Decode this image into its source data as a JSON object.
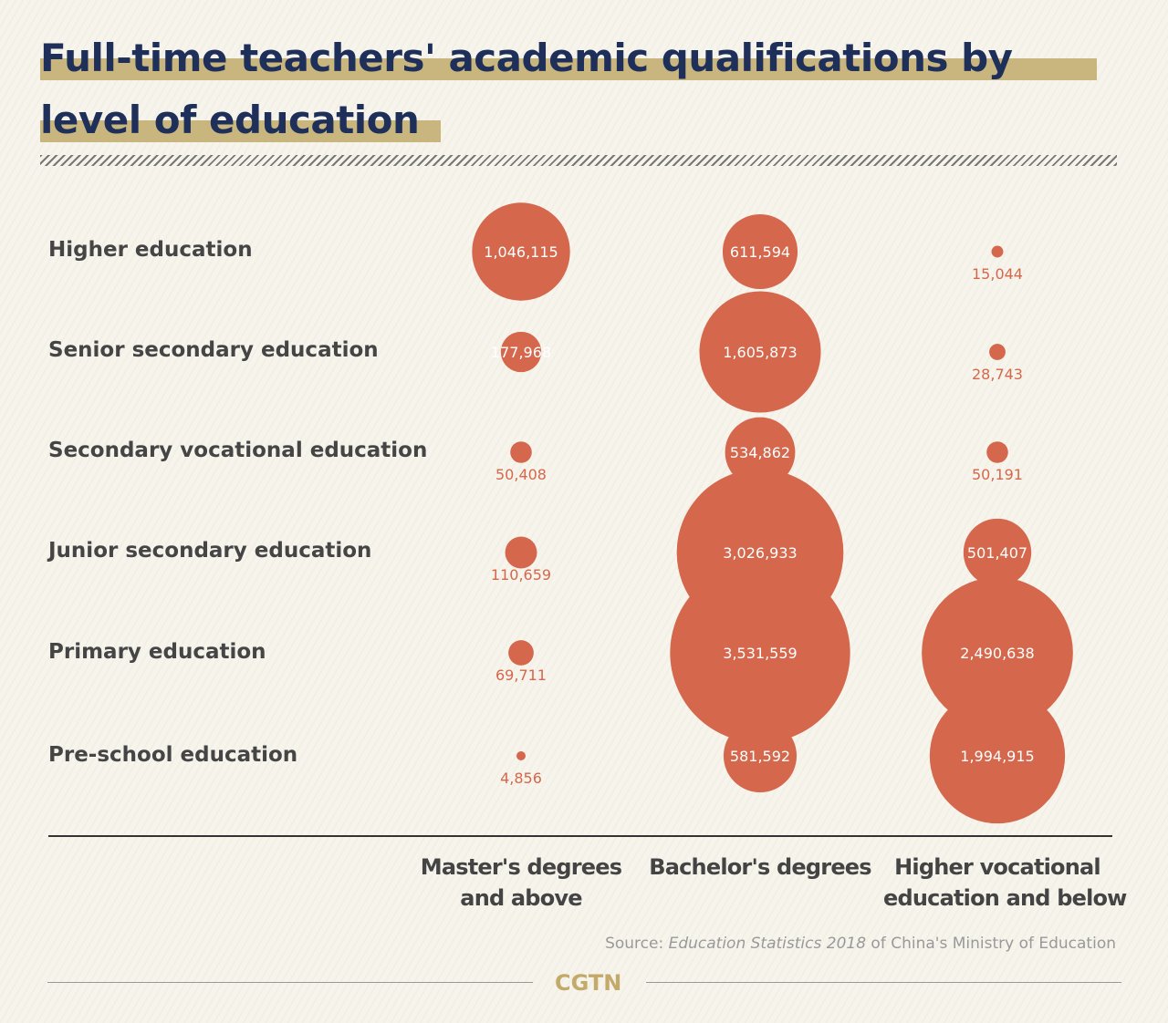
{
  "title_line1": "Full-time teachers' academic qualifications by",
  "title_line2": "level of education",
  "colors": {
    "bubble": "#d4674c",
    "title": "#1e2f5a",
    "highlight": "#c9b57e",
    "bg": "#f7f4ec"
  },
  "chart_data": {
    "type": "bubble",
    "title": "Full-time teachers' academic qualifications by level of education",
    "rows": [
      "Higher education",
      "Senior secondary education",
      "Secondary vocational education",
      "Junior secondary education",
      "Primary education",
      "Pre-school education"
    ],
    "columns": [
      "Master's degrees and above",
      "Bachelor's degrees",
      "Higher vocational education and below"
    ],
    "values": [
      [
        1046115,
        611594,
        15044
      ],
      [
        177968,
        1605873,
        28743
      ],
      [
        50408,
        534862,
        50191
      ],
      [
        110659,
        3026933,
        501407
      ],
      [
        69711,
        3531559,
        2490638
      ],
      [
        4856,
        581592,
        1994915
      ]
    ]
  },
  "column_headers": [
    [
      "Master's degrees",
      "and above"
    ],
    [
      "Bachelor's degrees",
      ""
    ],
    [
      "Higher vocational",
      "education and below"
    ]
  ],
  "source": {
    "prefix": "Source: ",
    "title": "Education Statistics 2018",
    "suffix": " of China's Ministry of Education"
  },
  "logo": "CGTN"
}
